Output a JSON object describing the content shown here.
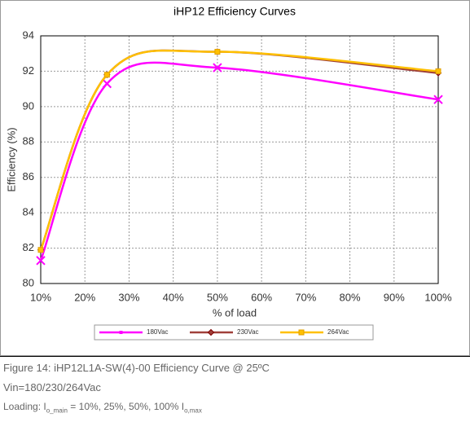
{
  "chart_data": {
    "type": "line",
    "title": "iHP12 Efficiency Curves",
    "xlabel": "% of load",
    "ylabel": "Efficiency (%)",
    "x": [
      10,
      25,
      50,
      100
    ],
    "series": [
      {
        "name": "180Vac",
        "color": "#ff00ff",
        "marker": "x",
        "values": [
          81.3,
          91.3,
          92.2,
          90.4
        ]
      },
      {
        "name": "230Vac",
        "color": "#a0403a",
        "marker": "diamond",
        "values": [
          81.9,
          91.8,
          93.1,
          91.9
        ]
      },
      {
        "name": "264Vac",
        "color": "#ffc000",
        "marker": "square",
        "values": [
          81.9,
          91.8,
          93.1,
          92.0
        ]
      }
    ],
    "xlim": [
      10,
      100
    ],
    "xticks": [
      {
        "value": 10,
        "label": "10%"
      },
      {
        "value": 20,
        "label": "20%"
      },
      {
        "value": 30,
        "label": "30%"
      },
      {
        "value": 40,
        "label": "40%"
      },
      {
        "value": 50,
        "label": "50%"
      },
      {
        "value": 60,
        "label": "60%"
      },
      {
        "value": 70,
        "label": "70%"
      },
      {
        "value": 80,
        "label": "80%"
      },
      {
        "value": 90,
        "label": "90%"
      },
      {
        "value": 100,
        "label": "100%"
      }
    ],
    "ylim": [
      80,
      94
    ],
    "yticks": [
      80,
      82,
      84,
      86,
      88,
      90,
      92,
      94
    ],
    "grid": true,
    "legend": "bottom"
  },
  "caption": {
    "figure": "Figure 14:    iHP12L1A-SW(4)-00 Efficiency Curve @ 25ºC",
    "vin": "Vin=180/230/264Vac",
    "loading": [
      "Loading:  I",
      "o_main",
      " = 10%, 25%, 50%, 100% I",
      "o,max"
    ]
  }
}
